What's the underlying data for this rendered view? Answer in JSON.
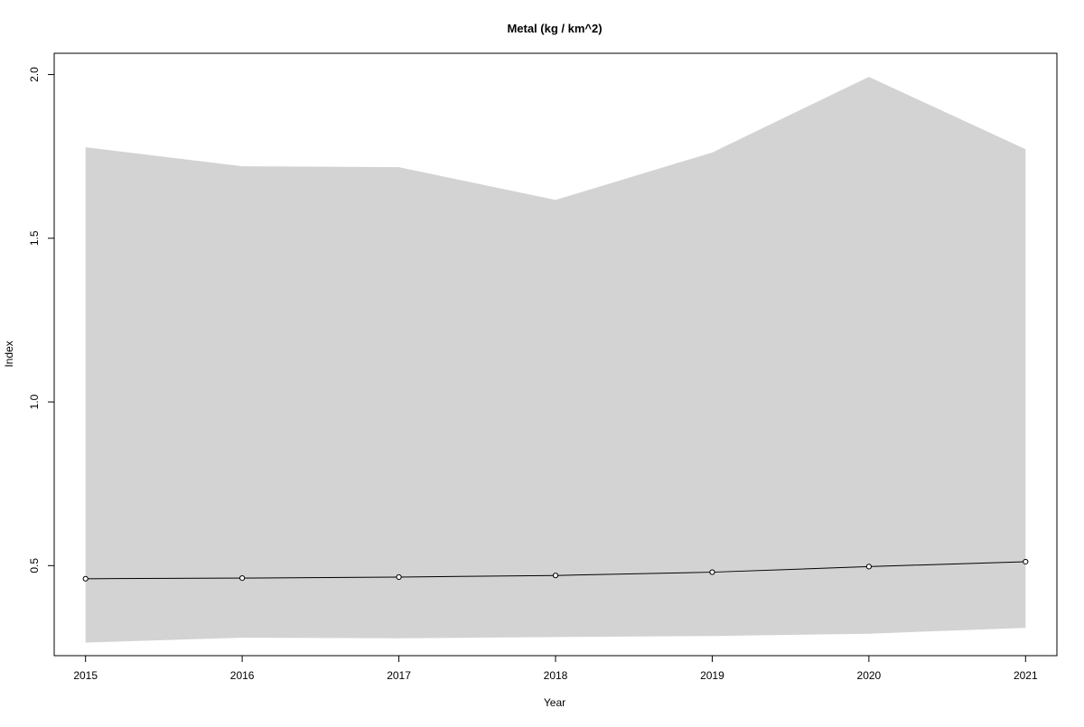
{
  "chart_data": {
    "type": "line",
    "title": "Metal (kg / km^2)",
    "xlabel": "Year",
    "ylabel": "Index",
    "x": [
      2015,
      2016,
      2017,
      2018,
      2019,
      2020,
      2021
    ],
    "series": [
      {
        "values": [
          0.46,
          0.462,
          0.465,
          0.47,
          0.48,
          0.497,
          0.512
        ],
        "lower": [
          0.265,
          0.28,
          0.278,
          0.282,
          0.285,
          0.292,
          0.31
        ],
        "upper": [
          1.778,
          1.72,
          1.717,
          1.617,
          1.762,
          1.993,
          1.772
        ],
        "color": "#000000",
        "band_color": "#d3d3d3",
        "marker": "open-circle"
      }
    ],
    "xlim": [
      2014.8,
      2021.2
    ],
    "ylim": [
      0.225,
      2.065
    ],
    "x_ticks": [
      2015,
      2016,
      2017,
      2018,
      2019,
      2020,
      2021
    ],
    "y_ticks": [
      0.5,
      1.0,
      1.5,
      2.0
    ],
    "y_tick_labels": [
      "0.5",
      "1.0",
      "1.5",
      "2.0"
    ],
    "grid": false,
    "legend": "none"
  }
}
